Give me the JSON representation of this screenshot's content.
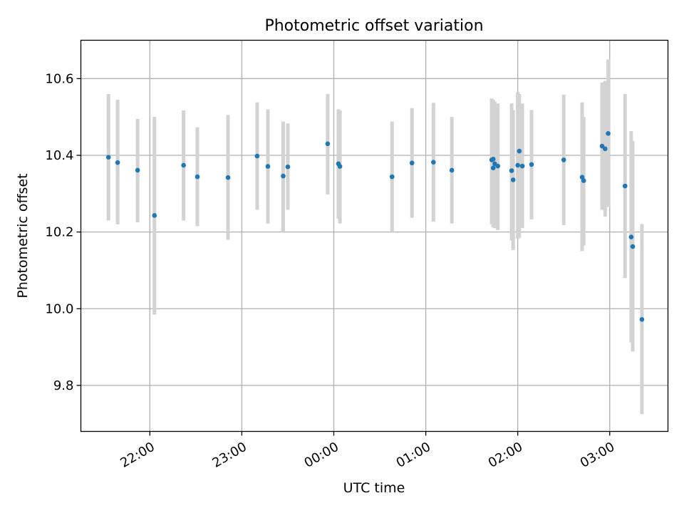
{
  "chart_data": {
    "type": "scatter",
    "title": "Photometric offset variation",
    "xlabel": "UTC time",
    "ylabel": "Photometric offset",
    "x_unit": "UTC time (HH:MM, observation spans evening to early morning of next day)",
    "xlim": [
      "21:15",
      "03:38"
    ],
    "ylim": [
      9.68,
      10.7
    ],
    "x_ticks": [
      "22:00",
      "23:00",
      "00:00",
      "01:00",
      "02:00",
      "03:00"
    ],
    "y_ticks": [
      9.8,
      10.0,
      10.2,
      10.4,
      10.6
    ],
    "y_tick_labels": [
      "9.8",
      "10.0",
      "10.2",
      "10.4",
      "10.6"
    ],
    "grid": true,
    "colors": {
      "point": "#1f77b4",
      "error_bar": "#d3d3d3",
      "grid": "#b0b0b0"
    },
    "series": [
      {
        "points": [
          {
            "x": "21:33",
            "y": 10.395,
            "ylo": 10.23,
            "yhi": 10.56
          },
          {
            "x": "21:39",
            "y": 10.381,
            "ylo": 10.22,
            "yhi": 10.545
          },
          {
            "x": "21:52",
            "y": 10.361,
            "ylo": 10.225,
            "yhi": 10.495
          },
          {
            "x": "22:03",
            "y": 10.243,
            "ylo": 9.985,
            "yhi": 10.5
          },
          {
            "x": "22:22",
            "y": 10.374,
            "ylo": 10.23,
            "yhi": 10.517
          },
          {
            "x": "22:31",
            "y": 10.344,
            "ylo": 10.215,
            "yhi": 10.473
          },
          {
            "x": "22:51",
            "y": 10.342,
            "ylo": 10.18,
            "yhi": 10.505
          },
          {
            "x": "23:10",
            "y": 10.398,
            "ylo": 10.258,
            "yhi": 10.538
          },
          {
            "x": "23:17",
            "y": 10.371,
            "ylo": 10.222,
            "yhi": 10.52
          },
          {
            "x": "23:27",
            "y": 10.346,
            "ylo": 10.2,
            "yhi": 10.488
          },
          {
            "x": "23:30",
            "y": 10.37,
            "ylo": 10.258,
            "yhi": 10.483
          },
          {
            "x": "23:56",
            "y": 10.43,
            "ylo": 10.298,
            "yhi": 10.56
          },
          {
            "x": "00:03",
            "y": 10.378,
            "ylo": 10.235,
            "yhi": 10.52
          },
          {
            "x": "00:04",
            "y": 10.371,
            "ylo": 10.222,
            "yhi": 10.517
          },
          {
            "x": "00:38",
            "y": 10.344,
            "ylo": 10.2,
            "yhi": 10.488
          },
          {
            "x": "00:51",
            "y": 10.38,
            "ylo": 10.237,
            "yhi": 10.523
          },
          {
            "x": "01:05",
            "y": 10.382,
            "ylo": 10.227,
            "yhi": 10.537
          },
          {
            "x": "01:17",
            "y": 10.361,
            "ylo": 10.222,
            "yhi": 10.5
          },
          {
            "x": "01:43",
            "y": 10.388,
            "ylo": 10.22,
            "yhi": 10.548
          },
          {
            "x": "01:44",
            "y": 10.39,
            "ylo": 10.212,
            "yhi": 10.545
          },
          {
            "x": "01:44",
            "y": 10.367,
            "ylo": 10.213,
            "yhi": 10.54
          },
          {
            "x": "01:45",
            "y": 10.378,
            "ylo": 10.21,
            "yhi": 10.54
          },
          {
            "x": "01:47",
            "y": 10.372,
            "ylo": 10.205,
            "yhi": 10.535
          },
          {
            "x": "01:56",
            "y": 10.36,
            "ylo": 10.178,
            "yhi": 10.535
          },
          {
            "x": "01:57",
            "y": 10.336,
            "ylo": 10.153,
            "yhi": 10.518
          },
          {
            "x": "02:00",
            "y": 10.374,
            "ylo": 10.182,
            "yhi": 10.565
          },
          {
            "x": "02:01",
            "y": 10.411,
            "ylo": 10.185,
            "yhi": 10.56
          },
          {
            "x": "02:03",
            "y": 10.372,
            "ylo": 10.21,
            "yhi": 10.535
          },
          {
            "x": "02:09",
            "y": 10.376,
            "ylo": 10.233,
            "yhi": 10.518
          },
          {
            "x": "02:30",
            "y": 10.388,
            "ylo": 10.218,
            "yhi": 10.558
          },
          {
            "x": "02:42",
            "y": 10.343,
            "ylo": 10.15,
            "yhi": 10.538
          },
          {
            "x": "02:43",
            "y": 10.334,
            "ylo": 10.165,
            "yhi": 10.5
          },
          {
            "x": "02:55",
            "y": 10.424,
            "ylo": 10.258,
            "yhi": 10.59
          },
          {
            "x": "02:57",
            "y": 10.417,
            "ylo": 10.24,
            "yhi": 10.594
          },
          {
            "x": "02:59",
            "y": 10.457,
            "ylo": 10.265,
            "yhi": 10.65
          },
          {
            "x": "03:10",
            "y": 10.32,
            "ylo": 10.08,
            "yhi": 10.56
          },
          {
            "x": "03:14",
            "y": 10.187,
            "ylo": 9.912,
            "yhi": 10.463
          },
          {
            "x": "03:15",
            "y": 10.162,
            "ylo": 9.888,
            "yhi": 10.437
          },
          {
            "x": "03:21",
            "y": 9.972,
            "ylo": 9.725,
            "yhi": 10.221
          }
        ]
      }
    ]
  }
}
